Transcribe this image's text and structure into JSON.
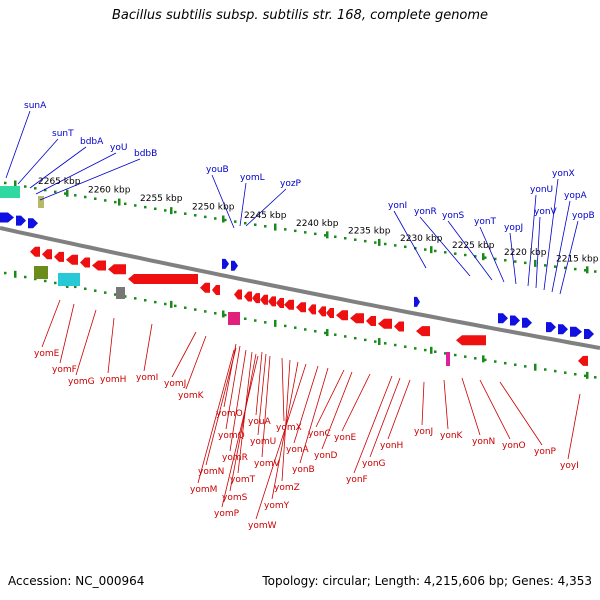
{
  "title": "Bacillus subtilis subsp. subtilis str. 168, complete genome",
  "footer": {
    "accession": "Accession: NC_000964",
    "topology": "Topology: circular; Length: 4,215,606 bp; Genes: 4,353"
  },
  "colors": {
    "forward_gene": "#1010e0",
    "reverse_gene": "#ee1010",
    "backbone": "#808080",
    "tick": "#1a8a1a",
    "label_forward": "#0000cc",
    "label_reverse": "#cc0000"
  },
  "kbp_ticks": [
    "2265 kbp",
    "2260 kbp",
    "2255 kbp",
    "2250 kbp",
    "2245 kbp",
    "2240 kbp",
    "2235 kbp",
    "2230 kbp",
    "2225 kbp",
    "2220 kbp",
    "2215 kbp"
  ],
  "forward_labels": [
    "sunA",
    "sunT",
    "bdbA",
    "yoU",
    "bdbB",
    "youB",
    "yomL",
    "yozP",
    "yonI",
    "yonR",
    "yonS",
    "yonT",
    "yopJ",
    "yonU",
    "yonV",
    "yonX",
    "yopA",
    "yopB"
  ],
  "reverse_labels": [
    "yomE",
    "yomF",
    "yomG",
    "yomH",
    "yomI",
    "yomJ",
    "yomK",
    "yomO",
    "yomQ",
    "yomN",
    "yomM",
    "yomR",
    "yomT",
    "yomS",
    "yomP",
    "youA",
    "yomU",
    "yomV",
    "yomX",
    "yomZ",
    "yomY",
    "yomW",
    "yonA",
    "yonB",
    "yonC",
    "yonD",
    "yonE",
    "yonF",
    "yonG",
    "yonH",
    "yonJ",
    "yonK",
    "yonN",
    "yonO",
    "yonP",
    "yoyI"
  ]
}
